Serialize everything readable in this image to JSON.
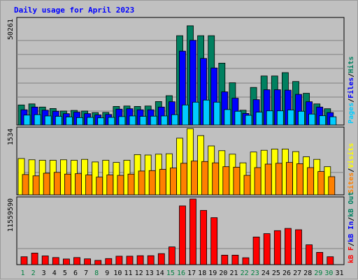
{
  "title": "Daily usage for April 2023",
  "colors": {
    "background": "#c0c0c0",
    "pages": "#00ccff",
    "files": "#0000ff",
    "hits": "#008060",
    "visits": "#ffff00",
    "sites": "#ff8000",
    "kb_in": "#0000ff",
    "kb_out": "#008060",
    "kb_f": "#ff0000",
    "title": "#0000ff",
    "weekend_label": "#008040",
    "weekday_label": "#000000"
  },
  "chart_data": [
    {
      "type": "bar",
      "panel": "hits-files-pages",
      "ymax": 50261,
      "ymax_label": "50261",
      "legend": [
        "Pages",
        "Files",
        "Hits"
      ],
      "categories": [
        "1",
        "2",
        "3",
        "4",
        "5",
        "6",
        "7",
        "8",
        "9",
        "10",
        "11",
        "12",
        "13",
        "14",
        "15",
        "16",
        "17",
        "18",
        "19",
        "20",
        "21",
        "22",
        "23",
        "24",
        "25",
        "26",
        "27",
        "28",
        "29",
        "30",
        "31"
      ],
      "series": [
        {
          "name": "Hits",
          "values": [
            9500,
            10000,
            8500,
            7800,
            6600,
            6900,
            6600,
            5900,
            6000,
            8800,
            9000,
            8800,
            9000,
            11100,
            13900,
            42300,
            47000,
            42300,
            42300,
            29300,
            20000,
            7000,
            17800,
            23200,
            23200,
            24800,
            20600,
            15000,
            10000,
            7700,
            0
          ]
        },
        {
          "name": "Files",
          "values": [
            7200,
            8500,
            7000,
            6500,
            5400,
            6100,
            5400,
            4800,
            5000,
            7500,
            7700,
            7200,
            7200,
            8500,
            11000,
            35000,
            40100,
            31500,
            27000,
            15700,
            12700,
            5500,
            12000,
            16700,
            16700,
            16500,
            14500,
            11000,
            8500,
            5900,
            0
          ]
        },
        {
          "name": "Pages",
          "values": [
            4700,
            4900,
            4300,
            4100,
            3800,
            3500,
            3600,
            3400,
            3600,
            4000,
            4300,
            4100,
            4200,
            4300,
            4900,
            9500,
            10800,
            11800,
            10800,
            7300,
            6500,
            4600,
            6100,
            6700,
            6700,
            7100,
            6500,
            5200,
            4400,
            3900,
            0
          ]
        }
      ]
    },
    {
      "type": "bar",
      "panel": "visits-sites",
      "ymax": 1534,
      "ymax_label": "1534",
      "legend": [
        "Sites",
        "Visits"
      ],
      "categories": [
        "1",
        "2",
        "3",
        "4",
        "5",
        "6",
        "7",
        "8",
        "9",
        "10",
        "11",
        "12",
        "13",
        "14",
        "15",
        "16",
        "17",
        "18",
        "19",
        "20",
        "21",
        "22",
        "23",
        "24",
        "25",
        "26",
        "27",
        "28",
        "29",
        "30",
        "31"
      ],
      "series": [
        {
          "name": "Visits",
          "values": [
            840,
            810,
            800,
            800,
            810,
            800,
            820,
            760,
            800,
            750,
            800,
            930,
            920,
            940,
            950,
            1310,
            1530,
            1370,
            1130,
            1020,
            940,
            740,
            990,
            1030,
            1060,
            1060,
            1000,
            880,
            820,
            650,
            0
          ]
        },
        {
          "name": "Sites",
          "values": [
            470,
            440,
            500,
            520,
            480,
            490,
            460,
            410,
            460,
            450,
            480,
            550,
            560,
            590,
            620,
            730,
            780,
            770,
            740,
            650,
            640,
            450,
            630,
            710,
            730,
            750,
            720,
            630,
            540,
            420,
            0
          ]
        }
      ]
    },
    {
      "type": "bar",
      "panel": "kbytes",
      "ymax": 11559590,
      "ymax_label": "11559590",
      "legend": [
        "kB F",
        "kB In",
        "kB Out"
      ],
      "categories": [
        "1",
        "2",
        "3",
        "4",
        "5",
        "6",
        "7",
        "8",
        "9",
        "10",
        "11",
        "12",
        "13",
        "14",
        "15",
        "16",
        "17",
        "18",
        "19",
        "20",
        "21",
        "22",
        "23",
        "24",
        "25",
        "26",
        "27",
        "28",
        "29",
        "30",
        "31"
      ],
      "series": [
        {
          "name": "kB F",
          "values": [
            1380000,
            2020000,
            1520000,
            1240000,
            980000,
            1240000,
            1010000,
            740000,
            1060000,
            1470000,
            1470000,
            1560000,
            1560000,
            1920000,
            3090000,
            10230000,
            11440000,
            9460000,
            8190000,
            1660000,
            1660000,
            1200000,
            4820000,
            5400000,
            5930000,
            6310000,
            6080000,
            3460000,
            2140000,
            1370000,
            0
          ]
        }
      ]
    }
  ],
  "x_axis": {
    "days": [
      "1",
      "2",
      "3",
      "4",
      "5",
      "6",
      "7",
      "8",
      "9",
      "10",
      "11",
      "12",
      "13",
      "14",
      "15",
      "16",
      "17",
      "18",
      "19",
      "20",
      "21",
      "22",
      "23",
      "24",
      "25",
      "26",
      "27",
      "28",
      "29",
      "30",
      "31"
    ],
    "weekend": [
      1,
      2,
      8,
      15,
      16,
      22,
      23,
      29,
      30
    ]
  }
}
